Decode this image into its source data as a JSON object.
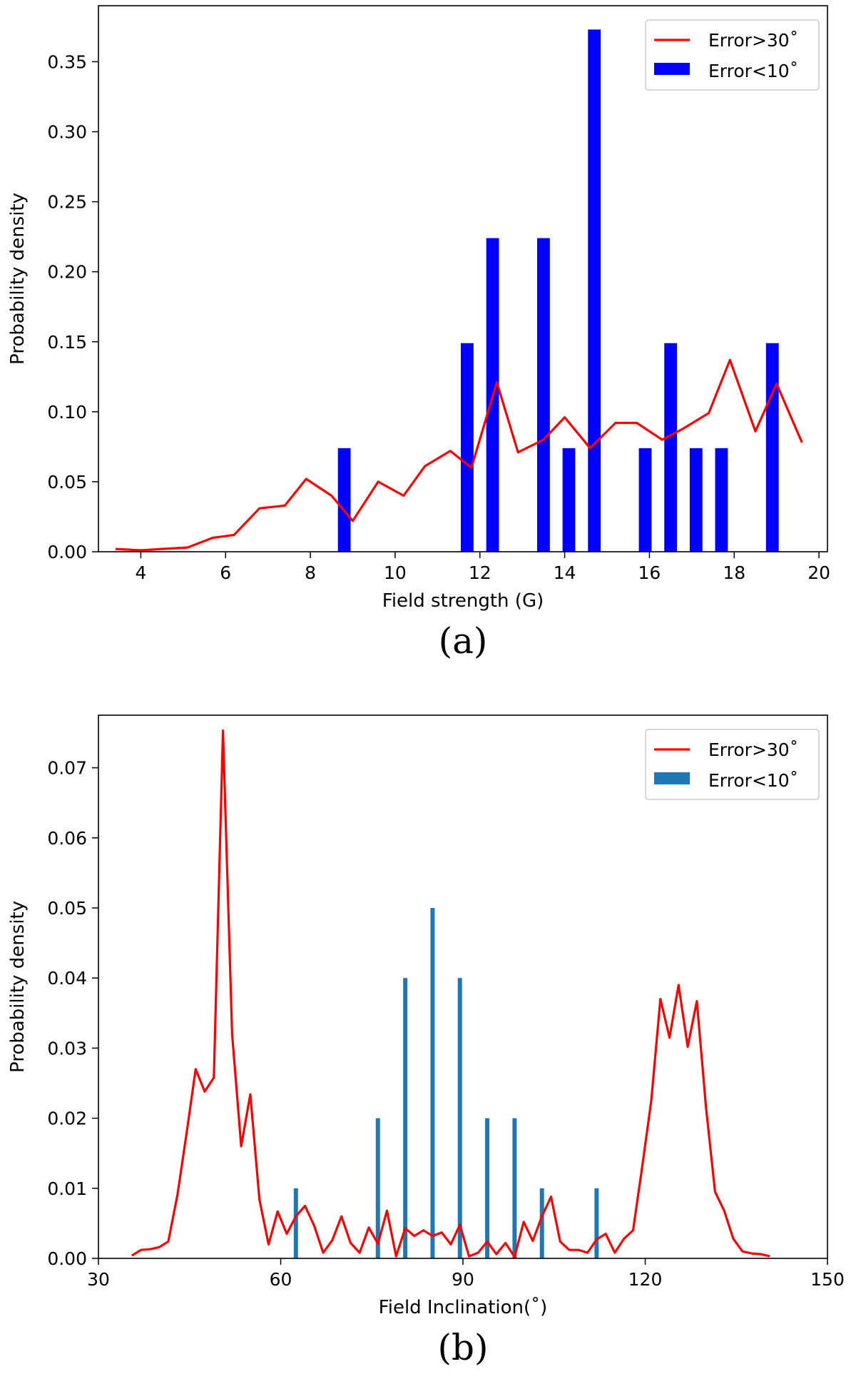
{
  "chart_data": [
    {
      "type": "bar+line",
      "panel_label": "(a)",
      "xlabel": "Field strength (G)",
      "ylabel": "Probability density",
      "xlim": [
        3.0,
        20.2
      ],
      "ylim": [
        0.0,
        0.39
      ],
      "x_ticks": [
        4,
        6,
        8,
        10,
        12,
        14,
        16,
        18,
        20
      ],
      "x_tick_labels": [
        "4",
        "6",
        "8",
        "10",
        "12",
        "14",
        "16",
        "18",
        "20"
      ],
      "y_ticks": [
        0.0,
        0.05,
        0.1,
        0.15,
        0.2,
        0.25,
        0.3,
        0.35
      ],
      "y_tick_labels": [
        "0.00",
        "0.05",
        "0.10",
        "0.15",
        "0.20",
        "0.25",
        "0.30",
        "0.35"
      ],
      "legend_position": "top-right",
      "legend_entries": [
        "Error>30˚",
        "Error<10˚"
      ],
      "line_series": {
        "name": "Error>30˚",
        "color": "#ff0000",
        "x": [
          3.4,
          4.0,
          4.5,
          5.1,
          5.7,
          6.2,
          6.8,
          7.4,
          7.9,
          8.5,
          9.0,
          9.6,
          10.2,
          10.7,
          11.3,
          11.8,
          12.4,
          12.9,
          13.5,
          14.0,
          14.6,
          15.2,
          15.7,
          16.3,
          16.8,
          17.4,
          17.9,
          18.5,
          19.0,
          19.6
        ],
        "y": [
          0.002,
          0.001,
          0.002,
          0.003,
          0.01,
          0.012,
          0.031,
          0.033,
          0.052,
          0.04,
          0.022,
          0.05,
          0.04,
          0.061,
          0.072,
          0.06,
          0.121,
          0.071,
          0.08,
          0.096,
          0.074,
          0.092,
          0.092,
          0.08,
          0.088,
          0.099,
          0.137,
          0.086,
          0.12,
          0.078
        ]
      },
      "bar_series": {
        "name": "Error<10˚",
        "color": "#0000ff",
        "x": [
          8.8,
          11.7,
          12.3,
          13.5,
          14.1,
          14.7,
          15.9,
          16.5,
          17.1,
          17.7,
          18.9
        ],
        "values": [
          0.074,
          0.149,
          0.224,
          0.224,
          0.074,
          0.373,
          0.074,
          0.149,
          0.074,
          0.074,
          0.149
        ],
        "bar_width": 0.3
      }
    },
    {
      "type": "bar+line",
      "panel_label": "(b)",
      "xlabel": "Field Inclination(˚)",
      "ylabel": "Probability density",
      "xlim": [
        30,
        150
      ],
      "ylim": [
        0.0,
        0.0775
      ],
      "x_ticks": [
        30,
        60,
        90,
        120,
        150
      ],
      "x_tick_labels": [
        "30",
        "60",
        "90",
        "120",
        "150"
      ],
      "y_ticks": [
        0.0,
        0.01,
        0.02,
        0.03,
        0.04,
        0.05,
        0.06,
        0.07
      ],
      "y_tick_labels": [
        "0.00",
        "0.01",
        "0.02",
        "0.03",
        "0.04",
        "0.05",
        "0.06",
        "0.07"
      ],
      "legend_position": "top-right",
      "legend_entries": [
        "Error>30˚",
        "Error<10˚"
      ],
      "line_series": {
        "name": "Error>30˚",
        "color": "#ff0000",
        "x": [
          35.5,
          37.0,
          38.5,
          40.0,
          41.5,
          43.0,
          44.5,
          46.0,
          47.5,
          49.0,
          50.5,
          52.0,
          53.5,
          55.0,
          56.5,
          58.0,
          59.5,
          61.0,
          62.5,
          64.0,
          65.5,
          67.0,
          68.5,
          70.0,
          71.5,
          73.0,
          74.5,
          76.0,
          77.5,
          79.0,
          80.5,
          82.0,
          83.5,
          85.0,
          86.5,
          88.0,
          89.5,
          91.0,
          92.5,
          94.0,
          95.5,
          97.0,
          98.5,
          100.0,
          101.5,
          103.0,
          104.5,
          106.0,
          107.5,
          109.0,
          110.5,
          112.0,
          113.5,
          115.0,
          116.5,
          118.0,
          119.5,
          121.0,
          122.5,
          124.0,
          125.5,
          127.0,
          128.5,
          130.0,
          131.5,
          133.0,
          134.5,
          136.0,
          137.5,
          139.0,
          140.5
        ],
        "y": [
          0.0004,
          0.0012,
          0.0013,
          0.0016,
          0.0024,
          0.009,
          0.0178,
          0.027,
          0.0238,
          0.0258,
          0.0753,
          0.032,
          0.016,
          0.0234,
          0.0084,
          0.002,
          0.0067,
          0.0035,
          0.006,
          0.0075,
          0.0047,
          0.0008,
          0.0026,
          0.006,
          0.0022,
          0.0008,
          0.0044,
          0.0021,
          0.0068,
          0.0003,
          0.0043,
          0.0032,
          0.004,
          0.0032,
          0.0037,
          0.002,
          0.0048,
          0.0003,
          0.0008,
          0.0024,
          0.0006,
          0.0022,
          0.0002,
          0.0052,
          0.0025,
          0.006,
          0.0088,
          0.0024,
          0.0012,
          0.0012,
          0.0008,
          0.0027,
          0.0035,
          0.0008,
          0.0028,
          0.004,
          0.013,
          0.0225,
          0.037,
          0.0315,
          0.039,
          0.0302,
          0.0367,
          0.0216,
          0.0095,
          0.0068,
          0.0028,
          0.001,
          0.0007,
          0.0006,
          0.0003
        ]
      },
      "bar_series": {
        "name": "Error<10˚",
        "color": "#1f77b4",
        "x": [
          62.5,
          76.0,
          80.5,
          85.0,
          89.5,
          94.0,
          98.5,
          103.0,
          112.0
        ],
        "values": [
          0.01,
          0.02,
          0.04,
          0.05,
          0.04,
          0.02,
          0.02,
          0.01,
          0.01
        ],
        "bar_width": 0.7
      }
    }
  ]
}
